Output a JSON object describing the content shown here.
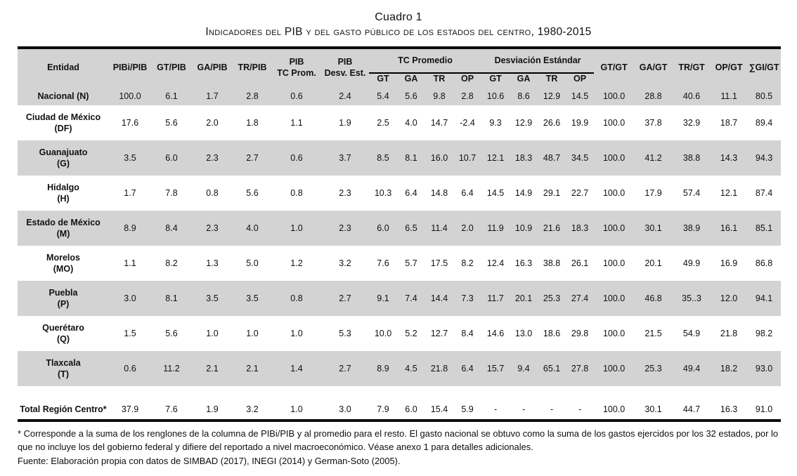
{
  "title": "Cuadro 1",
  "subtitle": "Indicadores del PIB y del gasto público de los estados del centro, 1980-2015",
  "colors": {
    "row_stripe": "#d3d3d3",
    "rule": "#000000"
  },
  "table": {
    "header": {
      "entidad": "Entidad",
      "ratio_cols": [
        "PIBi/PIB",
        "GT/PIB",
        "GA/PIB",
        "TR/PIB"
      ],
      "pib_tc": {
        "line1": "PIB",
        "line2": "TC Prom."
      },
      "pib_desv": {
        "line1": "PIB",
        "line2": "Desv. Est."
      },
      "group_tc": "TC Promedio",
      "group_desv": "Desviación Estándar",
      "sub_cols": [
        "GT",
        "GA",
        "TR",
        "OP"
      ],
      "tail_cols": [
        "GT/GT",
        "GA/GT",
        "TR/GT",
        "OP/GT",
        "∑GI/GT"
      ]
    },
    "rows": [
      {
        "name": "Nacional (N)",
        "abbr": "",
        "shade": true,
        "total": false,
        "values": [
          "100.0",
          "6.1",
          "1.7",
          "2.8",
          "0.6",
          "2.4",
          "5.4",
          "5.6",
          "9.8",
          "2.8",
          "10.6",
          "8.6",
          "12.9",
          "14.5",
          "100.0",
          "28.8",
          "40.6",
          "11.1",
          "80.5"
        ]
      },
      {
        "name": "Ciudad de México",
        "abbr": "(DF)",
        "shade": false,
        "total": false,
        "values": [
          "17.6",
          "5.6",
          "2.0",
          "1.8",
          "1.1",
          "1.9",
          "2.5",
          "4.0",
          "14.7",
          "-2.4",
          "9.3",
          "12.9",
          "26.6",
          "19.9",
          "100.0",
          "37.8",
          "32.9",
          "18.7",
          "89.4"
        ]
      },
      {
        "name": "Guanajuato",
        "abbr": "(G)",
        "shade": true,
        "total": false,
        "values": [
          "3.5",
          "6.0",
          "2.3",
          "2.7",
          "0.6",
          "3.7",
          "8.5",
          "8.1",
          "16.0",
          "10.7",
          "12.1",
          "18.3",
          "48.7",
          "34.5",
          "100.0",
          "41.2",
          "38.8",
          "14.3",
          "94.3"
        ]
      },
      {
        "name": "Hidalgo",
        "abbr": "(H)",
        "shade": false,
        "total": false,
        "values": [
          "1.7",
          "7.8",
          "0.8",
          "5.6",
          "0.8",
          "2.3",
          "10.3",
          "6.4",
          "14.8",
          "6.4",
          "14.5",
          "14.9",
          "29.1",
          "22.7",
          "100.0",
          "17.9",
          "57.4",
          "12.1",
          "87.4"
        ]
      },
      {
        "name": "Estado de México",
        "abbr": "(M)",
        "shade": true,
        "total": false,
        "values": [
          "8.9",
          "8.4",
          "2.3",
          "4.0",
          "1.0",
          "2.3",
          "6.0",
          "6.5",
          "11.4",
          "2.0",
          "11.9",
          "10.9",
          "21.6",
          "18.3",
          "100.0",
          "30.1",
          "38.9",
          "16.1",
          "85.1"
        ]
      },
      {
        "name": "Morelos",
        "abbr": "(MO)",
        "shade": false,
        "total": false,
        "values": [
          "1.1",
          "8.2",
          "1.3",
          "5.0",
          "1.2",
          "3.2",
          "7.6",
          "5.7",
          "17.5",
          "8.2",
          "12.4",
          "16.3",
          "38.8",
          "26.1",
          "100.0",
          "20.1",
          "49.9",
          "16.9",
          "86.8"
        ]
      },
      {
        "name": "Puebla",
        "abbr": "(P)",
        "shade": true,
        "total": false,
        "values": [
          "3.0",
          "8.1",
          "3.5",
          "3.5",
          "0.8",
          "2.7",
          "9.1",
          "7.4",
          "14.4",
          "7.3",
          "11.7",
          "20.1",
          "25.3",
          "27.4",
          "100.0",
          "46.8",
          "35..3",
          "12.0",
          "94.1"
        ]
      },
      {
        "name": "Querétaro",
        "abbr": "(Q)",
        "shade": false,
        "total": false,
        "values": [
          "1.5",
          "5.6",
          "1.0",
          "1.0",
          "1.0",
          "5.3",
          "10.0",
          "5.2",
          "12.7",
          "8.4",
          "14.6",
          "13.0",
          "18.6",
          "29.8",
          "100.0",
          "21.5",
          "54.9",
          "21.8",
          "98.2"
        ]
      },
      {
        "name": "Tlaxcala",
        "abbr": "(T)",
        "shade": true,
        "total": false,
        "values": [
          "0.6",
          "11.2",
          "2.1",
          "2.1",
          "1.4",
          "2.7",
          "8.9",
          "4.5",
          "21.8",
          "6.4",
          "15.7",
          "9.4",
          "65.1",
          "27.8",
          "100.0",
          "25.3",
          "49.4",
          "18.2",
          "93.0"
        ]
      },
      {
        "name": "Total Región Centro*",
        "abbr": "",
        "shade": false,
        "total": true,
        "values": [
          "37.9",
          "7.6",
          "1.9",
          "3.2",
          "1.0",
          "3.0",
          "7.9",
          "6.0",
          "15.4",
          "5.9",
          "-",
          "-",
          "-",
          "-",
          "100.0",
          "30.1",
          "44.7",
          "16.3",
          "91.0"
        ]
      }
    ]
  },
  "footnotes": [
    "* Corresponde a la suma de los renglones de la columna de PIBi/PIB y al promedio para el resto. El gasto nacional se obtuvo como la suma de los gastos ejercidos por los 32 estados, por lo que no incluye los del gobierno federal y difiere del reportado a nivel macroeconómico. Véase anexo 1 para detalles adicionales.",
    "Fuente: Elaboración propia con datos de SIMBAD (2017), INEGI (2014) y  German-Soto (2005)."
  ]
}
